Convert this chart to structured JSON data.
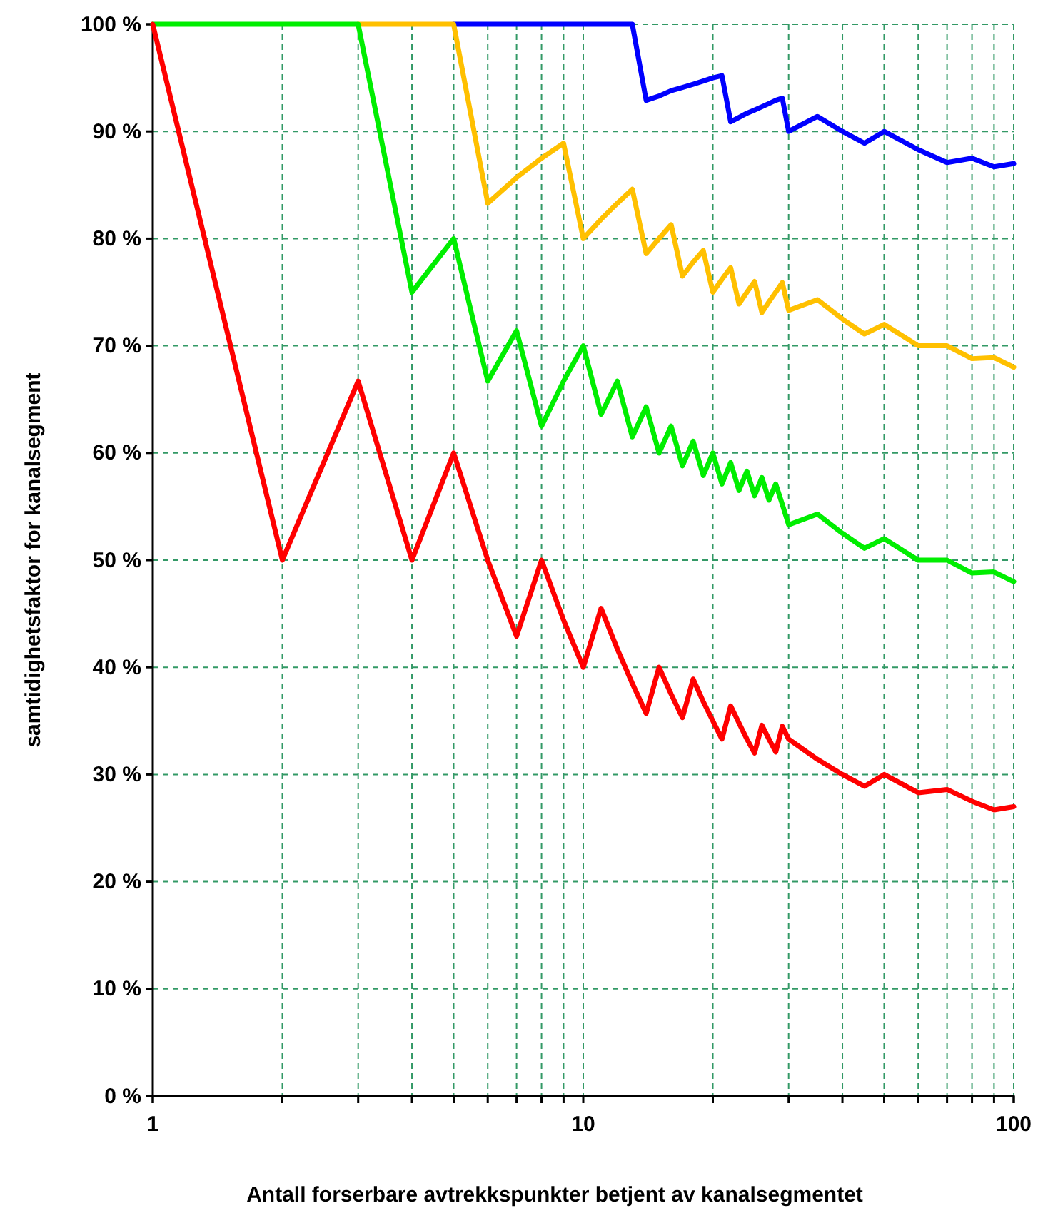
{
  "chart_data": {
    "type": "line",
    "xlabel": "Antall forserbare avtrekkspunkter betjent av kanalsegmentet",
    "ylabel": "samtidighetsfaktor for kanalsegment",
    "x": [
      1,
      2,
      3,
      4,
      5,
      6,
      7,
      8,
      9,
      10,
      11,
      12,
      13,
      14,
      15,
      16,
      17,
      18,
      19,
      20,
      21,
      22,
      23,
      24,
      25,
      26,
      27,
      28,
      29,
      30,
      35,
      40,
      45,
      50,
      60,
      70,
      80,
      90,
      100
    ],
    "series": [
      {
        "color": "#0000ff",
        "values": [
          null,
          null,
          null,
          null,
          100,
          100,
          100,
          100,
          100,
          100,
          100,
          100,
          100,
          92.9,
          93.3,
          93.8,
          94.1,
          94.4,
          94.7,
          95,
          95.2,
          90.9,
          91.3,
          91.7,
          92,
          92.3,
          92.6,
          92.9,
          93.1,
          90,
          91.4,
          90,
          88.9,
          90,
          88.3,
          87.1,
          87.5,
          86.7,
          87
        ]
      },
      {
        "color": "#ffc000",
        "values": [
          null,
          null,
          100,
          100,
          100,
          83.3,
          85.7,
          87.5,
          88.9,
          80,
          81.8,
          83.3,
          84.6,
          78.6,
          80,
          81.3,
          76.5,
          77.8,
          78.9,
          75,
          76.2,
          77.3,
          73.9,
          75,
          76,
          73.1,
          74.1,
          75,
          75.9,
          73.3,
          74.3,
          72.5,
          71.1,
          72,
          70,
          70,
          68.8,
          68.9,
          68
        ]
      },
      {
        "color": "#00ee00",
        "values": [
          100,
          100,
          100,
          75,
          80,
          66.7,
          71.4,
          62.5,
          66.7,
          70,
          63.6,
          66.7,
          61.5,
          64.3,
          60,
          62.5,
          58.8,
          61.1,
          57.9,
          60,
          57.1,
          59.1,
          56.5,
          58.3,
          56,
          57.7,
          55.6,
          57.1,
          55.2,
          53.3,
          54.3,
          52.5,
          51.1,
          52,
          50,
          50,
          48.8,
          48.9,
          48
        ]
      },
      {
        "color": "#ff0000",
        "values": [
          100,
          50,
          66.7,
          50,
          60,
          50,
          42.9,
          50,
          44.4,
          40,
          45.5,
          41.7,
          38.5,
          35.7,
          40,
          37.5,
          35.3,
          38.9,
          36.8,
          35,
          33.3,
          36.4,
          34.8,
          33.3,
          32,
          34.6,
          33.3,
          32.1,
          34.5,
          33.3,
          31.4,
          30,
          28.9,
          30,
          28.3,
          28.6,
          27.5,
          26.7,
          27
        ]
      }
    ],
    "log": "x",
    "xlim": [
      1,
      100
    ],
    "xticks": [
      1,
      {
        "value": 2,
        "label": null
      },
      {
        "value": 3,
        "label": null
      },
      {
        "value": 4,
        "label": null
      },
      {
        "value": 5,
        "label": null
      },
      {
        "value": 6,
        "label": null
      },
      {
        "value": 7,
        "label": null
      },
      {
        "value": 8,
        "label": null
      },
      {
        "value": 9,
        "label": null
      },
      10,
      {
        "value": 20,
        "label": null
      },
      {
        "value": 30,
        "label": null
      },
      {
        "value": 40,
        "label": null
      },
      {
        "value": 50,
        "label": null
      },
      {
        "value": 60,
        "label": null
      },
      {
        "value": 70,
        "label": null
      },
      {
        "value": 80,
        "label": null
      },
      {
        "value": 90,
        "label": null
      },
      100
    ],
    "ylim": [
      0,
      100
    ],
    "yticks": [
      {
        "value": 0,
        "label": "0 %"
      },
      {
        "value": 10,
        "label": "10 %"
      },
      {
        "value": 20,
        "label": "20 %"
      },
      {
        "value": 30,
        "label": "30 %"
      },
      {
        "value": 40,
        "label": "40 %"
      },
      {
        "value": 50,
        "label": "50 %"
      },
      {
        "value": 60,
        "label": "60 %"
      },
      {
        "value": 70,
        "label": "70 %"
      },
      {
        "value": 80,
        "label": "80 %"
      },
      {
        "value": 90,
        "label": "90 %"
      },
      {
        "value": 100,
        "label": "100 %"
      }
    ],
    "grid": true,
    "marker": "none",
    "line_style": "solid"
  }
}
